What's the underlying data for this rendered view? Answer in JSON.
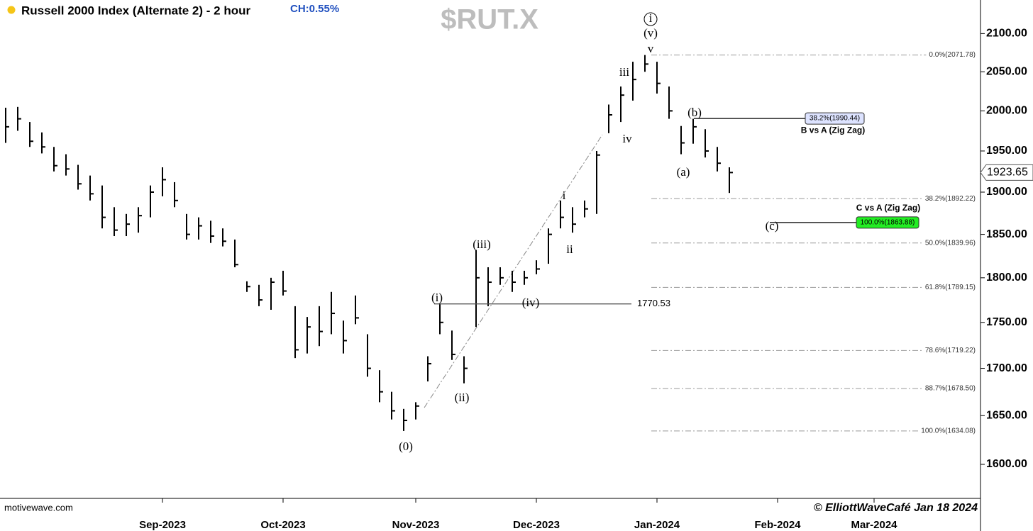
{
  "chart_data": {
    "type": "ohlc",
    "title": "Russell 2000 Index (Alternate 2) - 2 hour",
    "subtitle": "CH:0.55%",
    "watermark": "$RUT.X",
    "source": "motivewave.com",
    "credit": "© ElliottWaveCafé Jan 18 2024",
    "color": "#000000",
    "log_scale": true,
    "grid": false,
    "categories": [
      null,
      null,
      null,
      null,
      null,
      null,
      null,
      null,
      null,
      null,
      null,
      null,
      null,
      "Sep-2023",
      null,
      null,
      null,
      null,
      null,
      null,
      null,
      null,
      null,
      "Oct-2023",
      null,
      null,
      null,
      null,
      null,
      null,
      null,
      null,
      null,
      null,
      "Nov-2023",
      null,
      null,
      null,
      null,
      null,
      null,
      null,
      null,
      null,
      "Dec-2023",
      null,
      null,
      null,
      null,
      null,
      null,
      null,
      null,
      null,
      "Jan-2024",
      null,
      null,
      null,
      null,
      null,
      null,
      null,
      null,
      null,
      "Feb-2024",
      null,
      null,
      null,
      null,
      null,
      null,
      null,
      "Mar-2024",
      null,
      null,
      null,
      null,
      null,
      null,
      null,
      null
    ],
    "high": [
      2004,
      2005,
      1986,
      1973,
      1955,
      1946,
      1933,
      1920,
      1908,
      1882,
      1874,
      1882,
      1908,
      1930,
      1912,
      1874,
      1870,
      1866,
      1857,
      1844,
      1796,
      1792,
      1800,
      1808,
      1768,
      1756,
      1768,
      1784,
      1752,
      1780,
      1737,
      1698,
      1675,
      1657,
      1664,
      1713,
      1770.53,
      1741,
      1713,
      1832,
      1812,
      1812,
      1808,
      1808,
      1820,
      1857,
      1890,
      1882,
      1890,
      1950,
      2008,
      2031,
      2063,
      2071.78,
      2063,
      2031,
      1981,
      1990,
      1977,
      1955,
      1930,
      null,
      null,
      null,
      null,
      null,
      null,
      null,
      null,
      null,
      null,
      null,
      null,
      null,
      null,
      null,
      null,
      null,
      null,
      null,
      null
    ],
    "low": [
      1960,
      1975,
      1955,
      1947,
      1925,
      1920,
      1903,
      1890,
      1857,
      1848,
      1848,
      1852,
      1870,
      1895,
      1882,
      1844,
      1844,
      1840,
      1836,
      1812,
      1784,
      1768,
      1764,
      1780,
      1711,
      1716,
      1724,
      1737,
      1716,
      1748,
      1691,
      1664,
      1646,
      1634.08,
      1646,
      1686,
      1737,
      1709,
      1684,
      1745,
      1768,
      1792,
      1784,
      1792,
      1804,
      1816,
      1857,
      1852,
      1870,
      1874,
      1972,
      1986,
      2013,
      2050,
      2022,
      1990,
      1946,
      1959,
      1942,
      1925,
      1899,
      null,
      null,
      null,
      null,
      null,
      null,
      null,
      null,
      null,
      null,
      null,
      null,
      null,
      null,
      null,
      null,
      null,
      null,
      null,
      null
    ],
    "close": [
      1980,
      1990,
      1962,
      1955,
      1932,
      1928,
      1910,
      1898,
      1870,
      1855,
      1862,
      1872,
      1900,
      1915,
      1890,
      1850,
      1860,
      1848,
      1842,
      1815,
      1790,
      1775,
      1795,
      1785,
      1720,
      1745,
      1740,
      1760,
      1730,
      1755,
      1700,
      1675,
      1655,
      1645,
      1660,
      1705,
      1750,
      1715,
      1700,
      1800,
      1795,
      1800,
      1795,
      1800,
      1810,
      1850,
      1870,
      1862,
      1880,
      1945,
      1995,
      2020,
      2040,
      2060,
      2035,
      2000,
      1960,
      1980,
      1950,
      1935,
      1923.65,
      null,
      null,
      null,
      null,
      null,
      null,
      null,
      null,
      null,
      null,
      null,
      null,
      null,
      null,
      null,
      null,
      null,
      null,
      null,
      null
    ],
    "ylim": [
      1566,
      2145
    ],
    "yticks": [
      {
        "value": 1600,
        "label": "1600.00"
      },
      {
        "value": 1650,
        "label": "1650.00"
      },
      {
        "value": 1700,
        "label": "1700.00"
      },
      {
        "value": 1750,
        "label": "1750.00"
      },
      {
        "value": 1800,
        "label": "1800.00"
      },
      {
        "value": 1850,
        "label": "1850.00"
      },
      {
        "value": 1900,
        "label": "1900.00"
      },
      {
        "value": 1950,
        "label": "1950.00"
      },
      {
        "value": 2000,
        "label": "2000.00"
      },
      {
        "value": 2050,
        "label": "2050.00"
      },
      {
        "value": 2100,
        "label": "2100.00"
      }
    ],
    "fib_levels": [
      {
        "value": 2071.78,
        "label": "0.0%(2071.78)"
      },
      {
        "value": 1892.22,
        "label": "38.2%(1892.22)"
      },
      {
        "value": 1839.96,
        "label": "50.0%(1839.96)"
      },
      {
        "value": 1789.15,
        "label": "61.8%(1789.15)"
      },
      {
        "value": 1719.22,
        "label": "78.6%(1719.22)"
      },
      {
        "value": 1678.5,
        "label": "88.7%(1678.50)"
      },
      {
        "value": 1634.08,
        "label": "100.0%(1634.08)"
      }
    ],
    "projections": [
      {
        "value": 1990.44,
        "label": "38.2%(1990.44)",
        "color": "#dde3ff",
        "note": "B vs A (Zig Zag)"
      },
      {
        "value": 1863.88,
        "label": "100.0%(1863.88)",
        "color": "#22ee22",
        "note": "C vs A (Zig Zag)"
      }
    ],
    "hline": {
      "value": 1770.53,
      "label": "1770.53"
    },
    "wave_labels": [
      "i",
      "(v)",
      "v",
      "iii",
      "iv",
      "(b)",
      "(a)",
      "i",
      "ii",
      "(iii)",
      "(i)",
      "(iv)",
      "(ii)",
      "(0)",
      "(c)"
    ]
  }
}
